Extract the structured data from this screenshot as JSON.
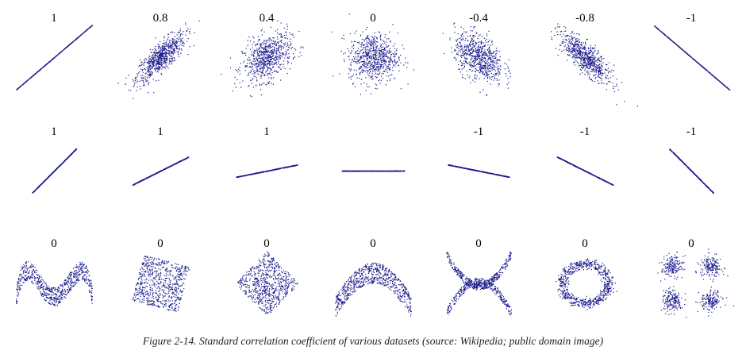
{
  "caption": "Figure 2-14. Standard correlation coefficient of various datasets (source: Wikipedia; public domain image)",
  "colors": {
    "points": "#1a1a8c",
    "background": "#ffffff"
  },
  "chart_data": {
    "type": "scatter",
    "rows": [
      {
        "panels": [
          {
            "label": "1",
            "kind": "linear",
            "r": 1
          },
          {
            "label": "0.8",
            "kind": "gaussian",
            "r": 0.8
          },
          {
            "label": "0.4",
            "kind": "gaussian",
            "r": 0.4
          },
          {
            "label": "0",
            "kind": "gaussian",
            "r": 0
          },
          {
            "label": "-0.4",
            "kind": "gaussian",
            "r": -0.4
          },
          {
            "label": "-0.8",
            "kind": "gaussian",
            "r": -0.8
          },
          {
            "label": "-1",
            "kind": "linear",
            "r": -1
          }
        ]
      },
      {
        "panels": [
          {
            "label": "1",
            "kind": "line",
            "slope": 1
          },
          {
            "label": "1",
            "kind": "line",
            "slope": 0.5
          },
          {
            "label": "1",
            "kind": "line",
            "slope": 0.2
          },
          {
            "label": "",
            "kind": "line",
            "slope": 0
          },
          {
            "label": "-1",
            "kind": "line",
            "slope": -0.2
          },
          {
            "label": "-1",
            "kind": "line",
            "slope": -0.5
          },
          {
            "label": "-1",
            "kind": "line",
            "slope": -1
          }
        ]
      },
      {
        "panels": [
          {
            "label": "0",
            "kind": "wave"
          },
          {
            "label": "0",
            "kind": "rotated-square-15"
          },
          {
            "label": "0",
            "kind": "diamond"
          },
          {
            "label": "0",
            "kind": "parabola"
          },
          {
            "label": "0",
            "kind": "x-shape"
          },
          {
            "label": "0",
            "kind": "ring"
          },
          {
            "label": "0",
            "kind": "four-clusters"
          }
        ]
      }
    ]
  }
}
